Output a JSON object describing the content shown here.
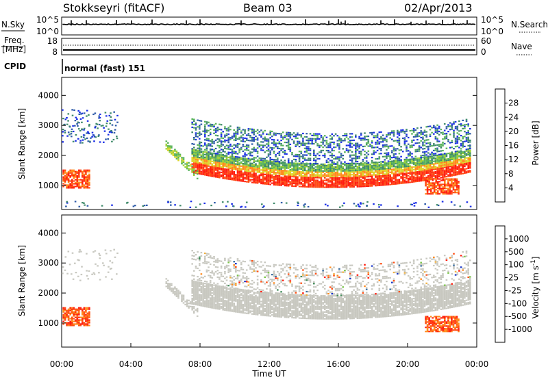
{
  "header": {
    "station": "Stokkseyri (fitACF)",
    "beam": "Beam 03",
    "date": "02/Apr/2013"
  },
  "top_panels": {
    "nsky_label": "N.Sky",
    "nsky_ticks": [
      "10^5",
      "10^0"
    ],
    "nsearch_label": "N.Search",
    "nsearch_ticks": [
      "10^5",
      "10^0"
    ],
    "freq_label_1": "Freq.",
    "freq_label_2": "[MHz]",
    "freq_ticks": [
      "18",
      "8"
    ],
    "nave_label": "Nave",
    "nave_ticks": [
      "60",
      "0"
    ],
    "cpid_label": "CPID",
    "cpid_value": "normal (fast) 151"
  },
  "chart_data": [
    {
      "type": "heatmap",
      "title": "",
      "ylabel": "Slant Range [km]",
      "xlabel": "",
      "ylim": [
        200,
        4600
      ],
      "xlim": [
        0,
        24
      ],
      "yticks": [
        "1000",
        "2000",
        "3000",
        "4000"
      ],
      "colorbar_label": "Power [dB]",
      "colorbar_ticks": [
        "4",
        "8",
        "12",
        "16",
        "20",
        "24",
        "28"
      ],
      "colorbar_colors": [
        "#1a2ee6",
        "#2d5aa8",
        "#3f8a6a",
        "#58b35a",
        "#9ccf37",
        "#ddd62b",
        "#ff8a1c",
        "#ff4a14",
        "#ff1e10"
      ],
      "features": [
        {
          "name": "main arc",
          "x": [
            7.5,
            23.5
          ],
          "y": [
            900,
            1800
          ],
          "level": "high"
        },
        {
          "name": "upper band",
          "x": [
            8.0,
            23.0
          ],
          "y": [
            1800,
            3200
          ],
          "level": "low"
        },
        {
          "name": "early echoes",
          "x": [
            0.0,
            1.6
          ],
          "y": [
            900,
            1500
          ],
          "level": "high"
        },
        {
          "name": "scattered echoes",
          "x": [
            0.0,
            3.0
          ],
          "y": [
            2400,
            3500
          ],
          "level": "low"
        }
      ]
    },
    {
      "type": "heatmap",
      "title": "",
      "ylabel": "Slant Range [km]",
      "xlabel": "Time UT",
      "ylim": [
        200,
        4600
      ],
      "xlim": [
        0,
        24
      ],
      "yticks": [
        "1000",
        "2000",
        "3000",
        "4000"
      ],
      "xticks": [
        "00:00",
        "04:00",
        "08:00",
        "12:00",
        "16:00",
        "20:00",
        "00:00"
      ],
      "colorbar_label": "Velocity [m s",
      "colorbar_unit_sup": "-1",
      "colorbar_unit_end": "]",
      "colorbar_ticks": [
        "1000",
        "500",
        "100",
        "25",
        "-25",
        "-100",
        "-500",
        "-1000"
      ],
      "colorbar_colors": [
        "#1836c8",
        "#3d6fa0",
        "#3f8a57",
        "#7cc64a",
        "#c8c8c0",
        "#f0b040",
        "#ff8a1c",
        "#ff5014",
        "#ff1e10"
      ],
      "features": [
        {
          "name": "ground scatter",
          "x": [
            7.5,
            23.5
          ],
          "y": [
            900,
            2600
          ],
          "velocity_ms": 0
        },
        {
          "name": "negative velocity patch",
          "x": [
            21.0,
            23.0
          ],
          "y": [
            700,
            1200
          ],
          "velocity_ms": -500
        },
        {
          "name": "early echoes",
          "x": [
            0.0,
            1.6
          ],
          "y": [
            900,
            1500
          ],
          "velocity_ms": -500
        }
      ]
    }
  ]
}
